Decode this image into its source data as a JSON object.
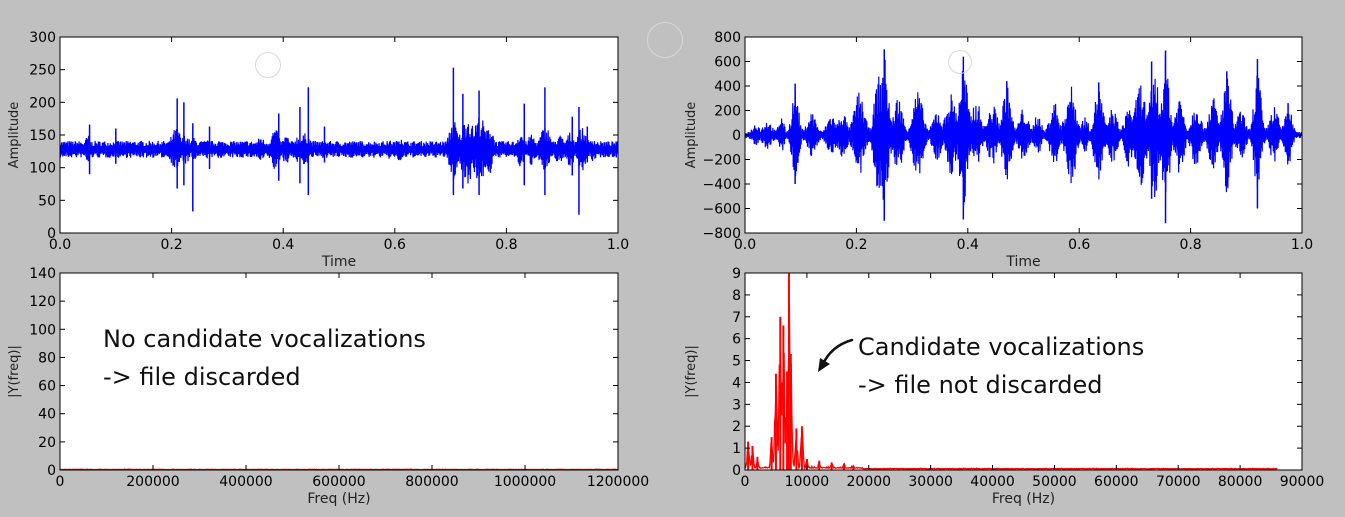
{
  "annotations": {
    "left_line1": "No candidate vocalizations",
    "left_line2": "-> file discarded",
    "right_line1": "Candidate vocalizations",
    "right_line2": "-> file not discarded"
  },
  "chart_data": [
    {
      "id": "left-time",
      "type": "line",
      "xlabel": "Time",
      "ylabel": "Amplitude",
      "xlim": [
        0,
        1.0
      ],
      "ylim": [
        0,
        300
      ],
      "xticks": [
        0.0,
        0.2,
        0.4,
        0.6,
        0.8,
        1.0
      ],
      "xtick_labels": [
        "0.0",
        "0.2",
        "0.4",
        "0.6",
        "0.8",
        "1.0"
      ],
      "yticks": [
        0,
        50,
        100,
        150,
        200,
        250,
        300
      ],
      "ytick_labels": [
        "0",
        "50",
        "100",
        "150",
        "200",
        "250",
        "300"
      ],
      "color": "#0000ff",
      "series": [
        {
          "baseline": 128,
          "noise": 3,
          "bursts": [
            [
              0.02,
              0.12,
              10,
              4
            ],
            [
              0.05,
              0.08,
              20,
              0.006
            ],
            [
              0.095,
              0.07,
              10,
              0.005
            ],
            [
              0.125,
              0.06,
              11,
              0.004
            ],
            [
              0.155,
              0.06,
              10,
              0.004
            ],
            [
              0.208,
              0.55,
              30,
              0.012
            ],
            [
              0.225,
              0.35,
              20,
              0.01
            ],
            [
              0.24,
              0.25,
              15,
              0.008
            ],
            [
              0.265,
              0.22,
              12,
              0.008
            ],
            [
              0.285,
              0.12,
              12,
              0.006
            ],
            [
              0.31,
              0.1,
              10,
              0.006
            ],
            [
              0.335,
              0.12,
              11,
              0.005
            ],
            [
              0.36,
              0.14,
              18,
              0.008
            ],
            [
              0.385,
              0.24,
              30,
              0.01
            ],
            [
              0.405,
              0.18,
              20,
              0.008
            ],
            [
              0.425,
              0.26,
              18,
              0.009
            ],
            [
              0.44,
              0.35,
              22,
              0.012
            ],
            [
              0.465,
              0.1,
              10,
              0.006
            ],
            [
              0.49,
              0.1,
              10,
              0.006
            ],
            [
              0.515,
              0.12,
              10,
              0.006
            ],
            [
              0.535,
              0.1,
              10,
              0.006
            ],
            [
              0.565,
              0.12,
              10,
              0.006
            ],
            [
              0.59,
              0.1,
              12,
              0.006
            ],
            [
              0.61,
              0.18,
              20,
              0.007
            ],
            [
              0.65,
              0.08,
              8,
              0.005
            ],
            [
              0.705,
              0.45,
              44,
              0.01
            ],
            [
              0.73,
              0.35,
              50,
              0.015
            ],
            [
              0.752,
              0.35,
              50,
              0.014
            ],
            [
              0.77,
              0.3,
              35,
              0.01
            ],
            [
              0.795,
              0.08,
              8,
              0.006
            ],
            [
              0.825,
              0.22,
              25,
              0.008
            ],
            [
              0.845,
              0.22,
              22,
              0.008
            ],
            [
              0.87,
              0.4,
              34,
              0.012
            ],
            [
              0.895,
              0.2,
              20,
              0.01
            ],
            [
              0.915,
              0.25,
              24,
              0.01
            ],
            [
              0.935,
              0.4,
              30,
              0.012
            ],
            [
              0.955,
              0.15,
              16,
              0.008
            ]
          ],
          "spikes": [
            [
              0.053,
              38,
              -38
            ],
            [
              0.1,
              32,
              -22
            ],
            [
              0.21,
              78,
              -60
            ],
            [
              0.222,
              72,
              -55
            ],
            [
              0.238,
              40,
              -95
            ],
            [
              0.268,
              35,
              -30
            ],
            [
              0.392,
              55,
              -48
            ],
            [
              0.43,
              65,
              -52
            ],
            [
              0.445,
              95,
              -70
            ],
            [
              0.474,
              35,
              -20
            ],
            [
              0.705,
              125,
              -70
            ],
            [
              0.722,
              85,
              -60
            ],
            [
              0.751,
              90,
              -70
            ],
            [
              0.832,
              70,
              -55
            ],
            [
              0.869,
              95,
              -70
            ],
            [
              0.918,
              50,
              -40
            ],
            [
              0.93,
              65,
              -100
            ],
            [
              0.945,
              35,
              -20
            ]
          ]
        }
      ]
    },
    {
      "id": "right-time",
      "type": "line",
      "xlabel": "Time",
      "ylabel": "Amplitude",
      "xlim": [
        0,
        1.0
      ],
      "ylim": [
        -800,
        800
      ],
      "xticks": [
        0.0,
        0.2,
        0.4,
        0.6,
        0.8,
        1.0
      ],
      "xtick_labels": [
        "0.0",
        "0.2",
        "0.4",
        "0.6",
        "0.8",
        "1.0"
      ],
      "yticks": [
        -800,
        -600,
        -400,
        -200,
        0,
        200,
        400,
        600,
        800
      ],
      "ytick_labels": [
        "−800",
        "−600",
        "−400",
        "−200",
        "0",
        "200",
        "400",
        "600",
        "800"
      ],
      "color": "#0000ff",
      "series": [
        {
          "baseline": 0,
          "noise": 25,
          "bursts": [
            [
              0.02,
              80,
              0.008
            ],
            [
              0.04,
              100,
              0.01
            ],
            [
              0.065,
              140,
              0.006
            ],
            [
              0.09,
              360,
              0.008
            ],
            [
              0.12,
              170,
              0.01
            ],
            [
              0.155,
              150,
              0.01
            ],
            [
              0.175,
              170,
              0.01
            ],
            [
              0.205,
              330,
              0.012
            ],
            [
              0.24,
              470,
              0.01
            ],
            [
              0.25,
              620,
              0.01
            ],
            [
              0.275,
              300,
              0.01
            ],
            [
              0.31,
              340,
              0.012
            ],
            [
              0.345,
              190,
              0.01
            ],
            [
              0.37,
              320,
              0.012
            ],
            [
              0.392,
              560,
              0.01
            ],
            [
              0.415,
              260,
              0.012
            ],
            [
              0.445,
              220,
              0.012
            ],
            [
              0.47,
              380,
              0.01
            ],
            [
              0.5,
              200,
              0.01
            ],
            [
              0.525,
              160,
              0.008
            ],
            [
              0.555,
              260,
              0.01
            ],
            [
              0.585,
              380,
              0.012
            ],
            [
              0.61,
              130,
              0.008
            ],
            [
              0.635,
              370,
              0.01
            ],
            [
              0.66,
              200,
              0.01
            ],
            [
              0.69,
              240,
              0.01
            ],
            [
              0.71,
              410,
              0.012
            ],
            [
              0.735,
              520,
              0.01
            ],
            [
              0.755,
              630,
              0.009
            ],
            [
              0.78,
              300,
              0.01
            ],
            [
              0.81,
              260,
              0.01
            ],
            [
              0.84,
              300,
              0.01
            ],
            [
              0.865,
              460,
              0.01
            ],
            [
              0.89,
              180,
              0.01
            ],
            [
              0.92,
              540,
              0.008
            ],
            [
              0.95,
              220,
              0.01
            ],
            [
              0.975,
              240,
              0.008
            ]
          ],
          "spikes": [
            [
              0.09,
              420,
              -400
            ],
            [
              0.25,
              700,
              -700
            ],
            [
              0.392,
              640,
              -690
            ],
            [
              0.47,
              440,
              -280
            ],
            [
              0.635,
              430,
              -270
            ],
            [
              0.73,
              600,
              -520
            ],
            [
              0.755,
              690,
              -720
            ],
            [
              0.865,
              520,
              -420
            ],
            [
              0.92,
              620,
              -600
            ],
            [
              0.975,
              260,
              -180
            ]
          ]
        }
      ]
    },
    {
      "id": "left-freq",
      "type": "line",
      "xlabel": "Freq (Hz)",
      "ylabel": "|Y(freq)|",
      "xlim": [
        0,
        1200000
      ],
      "ylim": [
        0,
        140
      ],
      "xticks": [
        0,
        200000,
        400000,
        600000,
        800000,
        1000000,
        1200000
      ],
      "xtick_labels": [
        "0",
        "200000",
        "400000",
        "600000",
        "800000",
        "1000000",
        "1200000"
      ],
      "yticks": [
        0,
        20,
        40,
        60,
        80,
        100,
        120,
        140
      ],
      "ytick_labels": [
        "0",
        "20",
        "40",
        "60",
        "80",
        "100",
        "120",
        "140"
      ],
      "color": "#ff0000",
      "series": [
        {
          "level": 0.3,
          "noise": 0.4,
          "xmax": 1200000
        }
      ]
    },
    {
      "id": "right-freq",
      "type": "line",
      "xlabel": "Freq (Hz)",
      "ylabel": "|Y(freq)|",
      "xlim": [
        0,
        90000
      ],
      "ylim": [
        0,
        9
      ],
      "xticks": [
        0,
        10000,
        20000,
        30000,
        40000,
        50000,
        60000,
        70000,
        80000,
        90000
      ],
      "xtick_labels": [
        "0",
        "10000",
        "20000",
        "30000",
        "40000",
        "50000",
        "60000",
        "70000",
        "80000",
        "90000"
      ],
      "yticks": [
        0,
        1,
        2,
        3,
        4,
        5,
        6,
        7,
        8,
        9
      ],
      "ytick_labels": [
        "0",
        "1",
        "2",
        "3",
        "4",
        "5",
        "6",
        "7",
        "8",
        "9"
      ],
      "color": "#ff0000",
      "series": [
        {
          "peaks": [
            [
              500,
              1.3
            ],
            [
              1200,
              1.1
            ],
            [
              2000,
              0.6
            ],
            [
              4300,
              1.5
            ],
            [
              5000,
              4.4
            ],
            [
              5700,
              7.0
            ],
            [
              6200,
              6.6
            ],
            [
              6800,
              4.5
            ],
            [
              7100,
              9.0
            ],
            [
              7400,
              5.3
            ],
            [
              8300,
              1.9
            ],
            [
              9200,
              2.0
            ],
            [
              10000,
              0.5
            ],
            [
              12000,
              0.4
            ],
            [
              14000,
              0.35
            ],
            [
              16000,
              0.3
            ],
            [
              17500,
              0.2
            ]
          ],
          "xmax": 86000
        }
      ]
    }
  ]
}
